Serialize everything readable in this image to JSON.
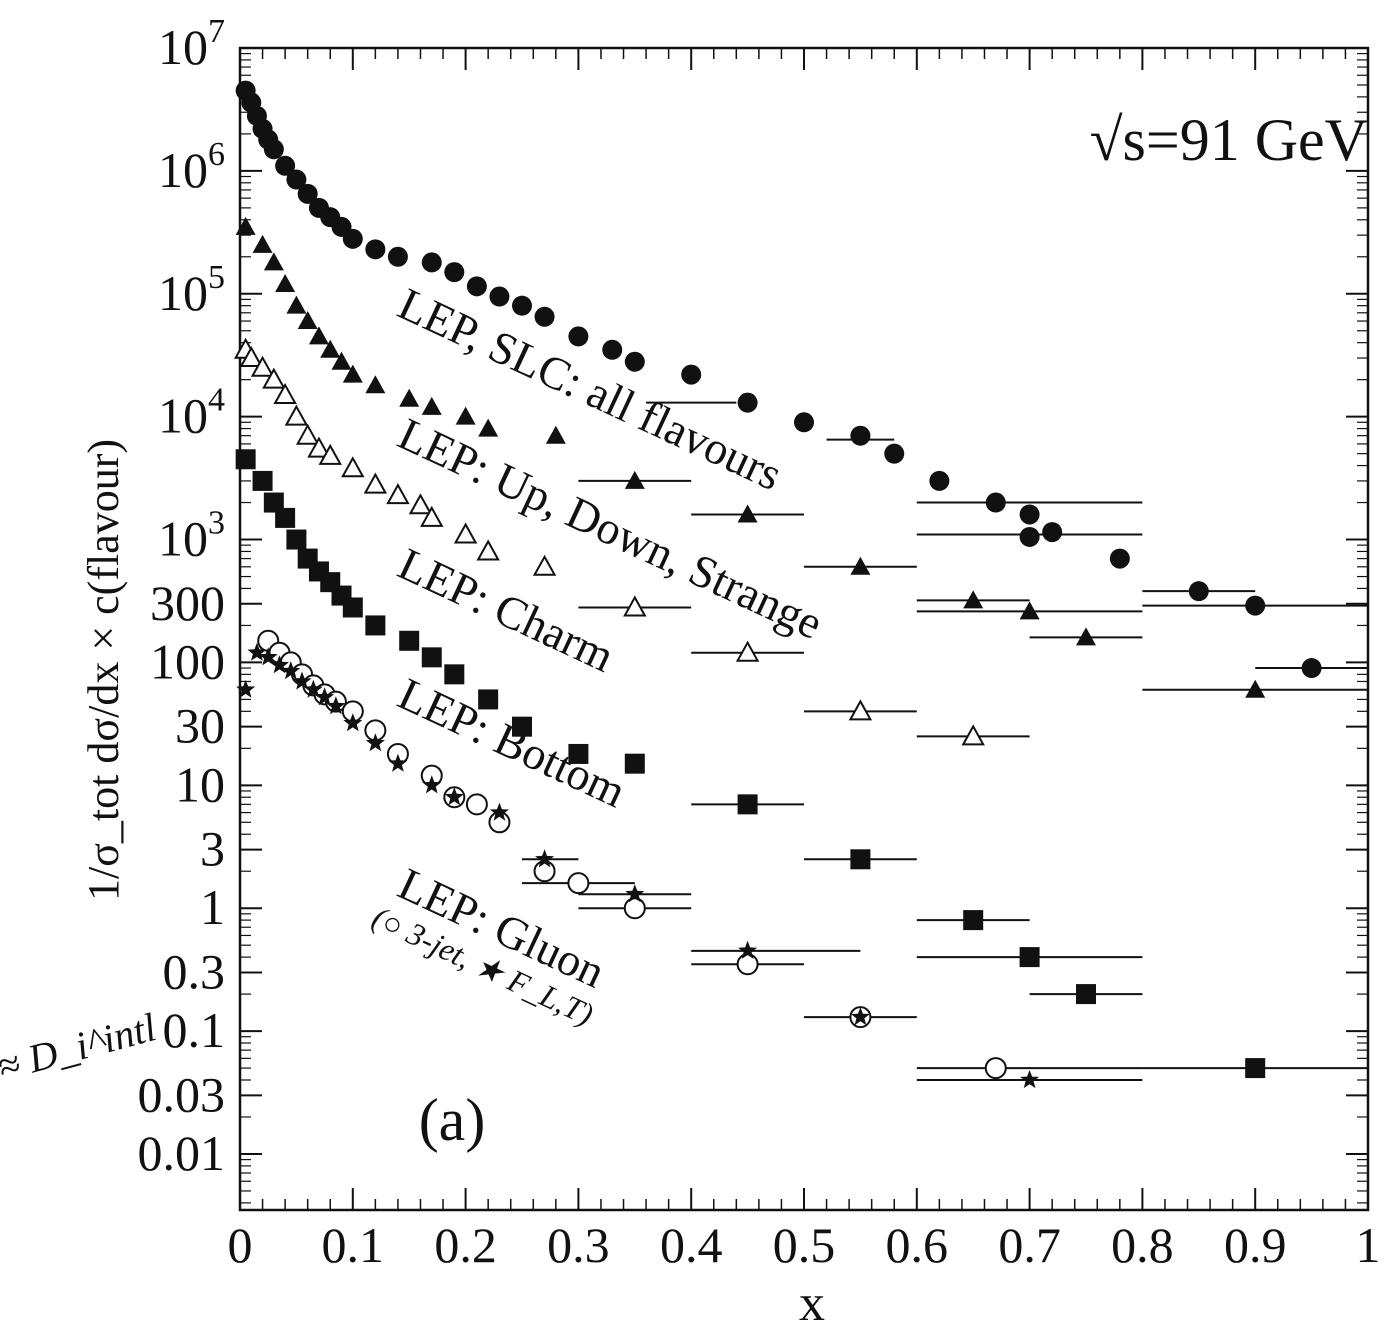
{
  "chart_data": {
    "type": "scatter",
    "title": "",
    "annotation_energy": "√s=91 GeV",
    "panel_label": "(a)",
    "xlabel": "x",
    "ylabel": "1/σ_tot dσ/dx × c(flavour)",
    "handwritten_note": "≈ D_i^intl",
    "xlim": [
      0,
      1
    ],
    "ylim": [
      0.0035,
      10000000
    ],
    "yscale": "log",
    "x_ticks": [
      "0",
      "0.1",
      "0.2",
      "0.3",
      "0.4",
      "0.5",
      "0.6",
      "0.7",
      "0.8",
      "0.9",
      "1"
    ],
    "y_ticks": [
      {
        "value": 10000000,
        "mantissa": "10",
        "exp": "7"
      },
      {
        "value": 1000000,
        "mantissa": "10",
        "exp": "6"
      },
      {
        "value": 100000,
        "mantissa": "10",
        "exp": "5"
      },
      {
        "value": 10000,
        "mantissa": "10",
        "exp": "4"
      },
      {
        "value": 1000,
        "mantissa": "10",
        "exp": "3"
      },
      {
        "value": 300,
        "label": "300"
      },
      {
        "value": 100,
        "label": "100"
      },
      {
        "value": 30,
        "label": "30"
      },
      {
        "value": 10,
        "label": "10"
      },
      {
        "value": 3,
        "label": "3"
      },
      {
        "value": 1,
        "label": "1"
      },
      {
        "value": 0.3,
        "label": "0.3"
      },
      {
        "value": 0.1,
        "label": "0.1"
      },
      {
        "value": 0.03,
        "label": "0.03"
      },
      {
        "value": 0.01,
        "label": "0.01"
      }
    ],
    "series_labels": [
      "LEP, SLC: all flavours",
      "LEP: Up, Down, Strange",
      "LEP: Charm",
      "LEP: Bottom",
      "LEP: Gluon",
      "(○ 3-jet, ★ F_L,T)"
    ],
    "series": [
      {
        "name": "LEP, SLC: all flavours",
        "marker": "filled-circle",
        "points": [
          [
            0.005,
            4500000
          ],
          [
            0.01,
            3600000
          ],
          [
            0.015,
            2800000
          ],
          [
            0.02,
            2200000
          ],
          [
            0.025,
            1800000
          ],
          [
            0.03,
            1500000
          ],
          [
            0.04,
            1100000
          ],
          [
            0.05,
            850000
          ],
          [
            0.06,
            650000
          ],
          [
            0.07,
            500000
          ],
          [
            0.08,
            420000
          ],
          [
            0.09,
            350000
          ],
          [
            0.1,
            280000
          ],
          [
            0.12,
            230000
          ],
          [
            0.14,
            200000
          ],
          [
            0.17,
            180000
          ],
          [
            0.19,
            150000
          ],
          [
            0.21,
            115000
          ],
          [
            0.23,
            95000
          ],
          [
            0.25,
            80000
          ],
          [
            0.27,
            65000
          ],
          [
            0.3,
            45000
          ],
          [
            0.33,
            35000
          ],
          [
            0.35,
            28000
          ],
          [
            0.4,
            22000
          ],
          [
            0.45,
            13000
          ],
          [
            0.5,
            9000
          ],
          [
            0.55,
            7000
          ],
          [
            0.58,
            5000
          ],
          [
            0.62,
            3000
          ],
          [
            0.67,
            2000
          ],
          [
            0.7,
            1600
          ],
          [
            0.7,
            1050
          ],
          [
            0.72,
            1150
          ],
          [
            0.78,
            700
          ],
          [
            0.85,
            380
          ],
          [
            0.9,
            290
          ],
          [
            0.95,
            90
          ]
        ],
        "xerr": [
          [
            0.36,
            0.44,
            13000
          ],
          [
            0.52,
            0.58,
            6500
          ],
          [
            0.6,
            0.8,
            2000
          ],
          [
            0.6,
            0.8,
            1100
          ],
          [
            0.8,
            0.9,
            380
          ],
          [
            0.8,
            1.0,
            290
          ],
          [
            0.9,
            1.0,
            90
          ]
        ]
      },
      {
        "name": "LEP: Up, Down, Strange",
        "marker": "filled-triangle",
        "points": [
          [
            0.005,
            350000
          ],
          [
            0.02,
            250000
          ],
          [
            0.03,
            180000
          ],
          [
            0.04,
            120000
          ],
          [
            0.05,
            80000
          ],
          [
            0.06,
            60000
          ],
          [
            0.07,
            45000
          ],
          [
            0.08,
            35000
          ],
          [
            0.09,
            28000
          ],
          [
            0.1,
            22000
          ],
          [
            0.12,
            18000
          ],
          [
            0.15,
            14000
          ],
          [
            0.17,
            12000
          ],
          [
            0.2,
            10000
          ],
          [
            0.22,
            8000
          ],
          [
            0.28,
            7000
          ],
          [
            0.35,
            3000
          ],
          [
            0.45,
            1600
          ],
          [
            0.55,
            600
          ],
          [
            0.65,
            320
          ],
          [
            0.7,
            260
          ],
          [
            0.75,
            160
          ],
          [
            0.9,
            60
          ]
        ],
        "xerr": [
          [
            0.3,
            0.4,
            3000
          ],
          [
            0.4,
            0.5,
            1600
          ],
          [
            0.5,
            0.6,
            600
          ],
          [
            0.6,
            0.7,
            320
          ],
          [
            0.6,
            0.8,
            260
          ],
          [
            0.7,
            0.8,
            160
          ],
          [
            0.8,
            1.0,
            60
          ]
        ]
      },
      {
        "name": "LEP: Charm",
        "marker": "open-triangle",
        "points": [
          [
            0.005,
            35000
          ],
          [
            0.01,
            30000
          ],
          [
            0.02,
            25000
          ],
          [
            0.03,
            20000
          ],
          [
            0.04,
            15000
          ],
          [
            0.05,
            10000
          ],
          [
            0.06,
            7000
          ],
          [
            0.07,
            5500
          ],
          [
            0.08,
            4800
          ],
          [
            0.1,
            3800
          ],
          [
            0.12,
            2800
          ],
          [
            0.14,
            2300
          ],
          [
            0.16,
            1900
          ],
          [
            0.17,
            1500
          ],
          [
            0.2,
            1100
          ],
          [
            0.22,
            800
          ],
          [
            0.27,
            600
          ],
          [
            0.35,
            280
          ],
          [
            0.45,
            120
          ],
          [
            0.55,
            40
          ],
          [
            0.65,
            25
          ]
        ],
        "xerr": [
          [
            0.3,
            0.4,
            280
          ],
          [
            0.4,
            0.5,
            120
          ],
          [
            0.5,
            0.6,
            40
          ],
          [
            0.6,
            0.7,
            25
          ]
        ]
      },
      {
        "name": "LEP: Bottom",
        "marker": "filled-square",
        "points": [
          [
            0.005,
            4500
          ],
          [
            0.02,
            3000
          ],
          [
            0.03,
            2000
          ],
          [
            0.04,
            1500
          ],
          [
            0.05,
            1000
          ],
          [
            0.06,
            700
          ],
          [
            0.07,
            550
          ],
          [
            0.08,
            450
          ],
          [
            0.09,
            350
          ],
          [
            0.1,
            280
          ],
          [
            0.12,
            200
          ],
          [
            0.15,
            150
          ],
          [
            0.17,
            110
          ],
          [
            0.19,
            80
          ],
          [
            0.22,
            50
          ],
          [
            0.25,
            30
          ],
          [
            0.3,
            18
          ],
          [
            0.35,
            15
          ],
          [
            0.45,
            7
          ],
          [
            0.55,
            2.5
          ],
          [
            0.65,
            0.8
          ],
          [
            0.7,
            0.4
          ],
          [
            0.75,
            0.2
          ],
          [
            0.9,
            0.05
          ]
        ],
        "xerr": [
          [
            0.4,
            0.5,
            7
          ],
          [
            0.5,
            0.6,
            2.5
          ],
          [
            0.6,
            0.7,
            0.8
          ],
          [
            0.6,
            0.8,
            0.4
          ],
          [
            0.7,
            0.8,
            0.2
          ],
          [
            0.8,
            1.0,
            0.05
          ]
        ]
      },
      {
        "name": "LEP: Gluon 3-jet",
        "marker": "open-circle",
        "points": [
          [
            0.025,
            150
          ],
          [
            0.035,
            120
          ],
          [
            0.045,
            100
          ],
          [
            0.055,
            80
          ],
          [
            0.065,
            65
          ],
          [
            0.075,
            55
          ],
          [
            0.085,
            48
          ],
          [
            0.1,
            40
          ],
          [
            0.12,
            28
          ],
          [
            0.14,
            18
          ],
          [
            0.17,
            12
          ],
          [
            0.19,
            8
          ],
          [
            0.21,
            7
          ],
          [
            0.23,
            5
          ],
          [
            0.27,
            2
          ],
          [
            0.3,
            1.6
          ],
          [
            0.35,
            1
          ],
          [
            0.45,
            0.35
          ],
          [
            0.55,
            0.13
          ],
          [
            0.67,
            0.05
          ]
        ],
        "xerr": [
          [
            0.25,
            0.35,
            1.6
          ],
          [
            0.3,
            0.4,
            1
          ],
          [
            0.4,
            0.5,
            0.35
          ],
          [
            0.5,
            0.6,
            0.13
          ],
          [
            0.6,
            0.8,
            0.05
          ]
        ]
      },
      {
        "name": "LEP: Gluon F_L,T",
        "marker": "star",
        "points": [
          [
            0.005,
            60
          ],
          [
            0.015,
            120
          ],
          [
            0.025,
            110
          ],
          [
            0.035,
            95
          ],
          [
            0.045,
            85
          ],
          [
            0.055,
            70
          ],
          [
            0.065,
            60
          ],
          [
            0.075,
            52
          ],
          [
            0.085,
            44
          ],
          [
            0.1,
            32
          ],
          [
            0.12,
            22
          ],
          [
            0.14,
            15
          ],
          [
            0.17,
            10
          ],
          [
            0.19,
            8
          ],
          [
            0.23,
            6
          ],
          [
            0.27,
            2.5
          ],
          [
            0.35,
            1.3
          ],
          [
            0.45,
            0.45
          ],
          [
            0.55,
            0.13
          ],
          [
            0.7,
            0.04
          ]
        ],
        "xerr": [
          [
            0.25,
            0.3,
            2.5
          ],
          [
            0.3,
            0.4,
            1.3
          ],
          [
            0.4,
            0.55,
            0.45
          ],
          [
            0.6,
            0.8,
            0.04
          ]
        ]
      }
    ]
  }
}
